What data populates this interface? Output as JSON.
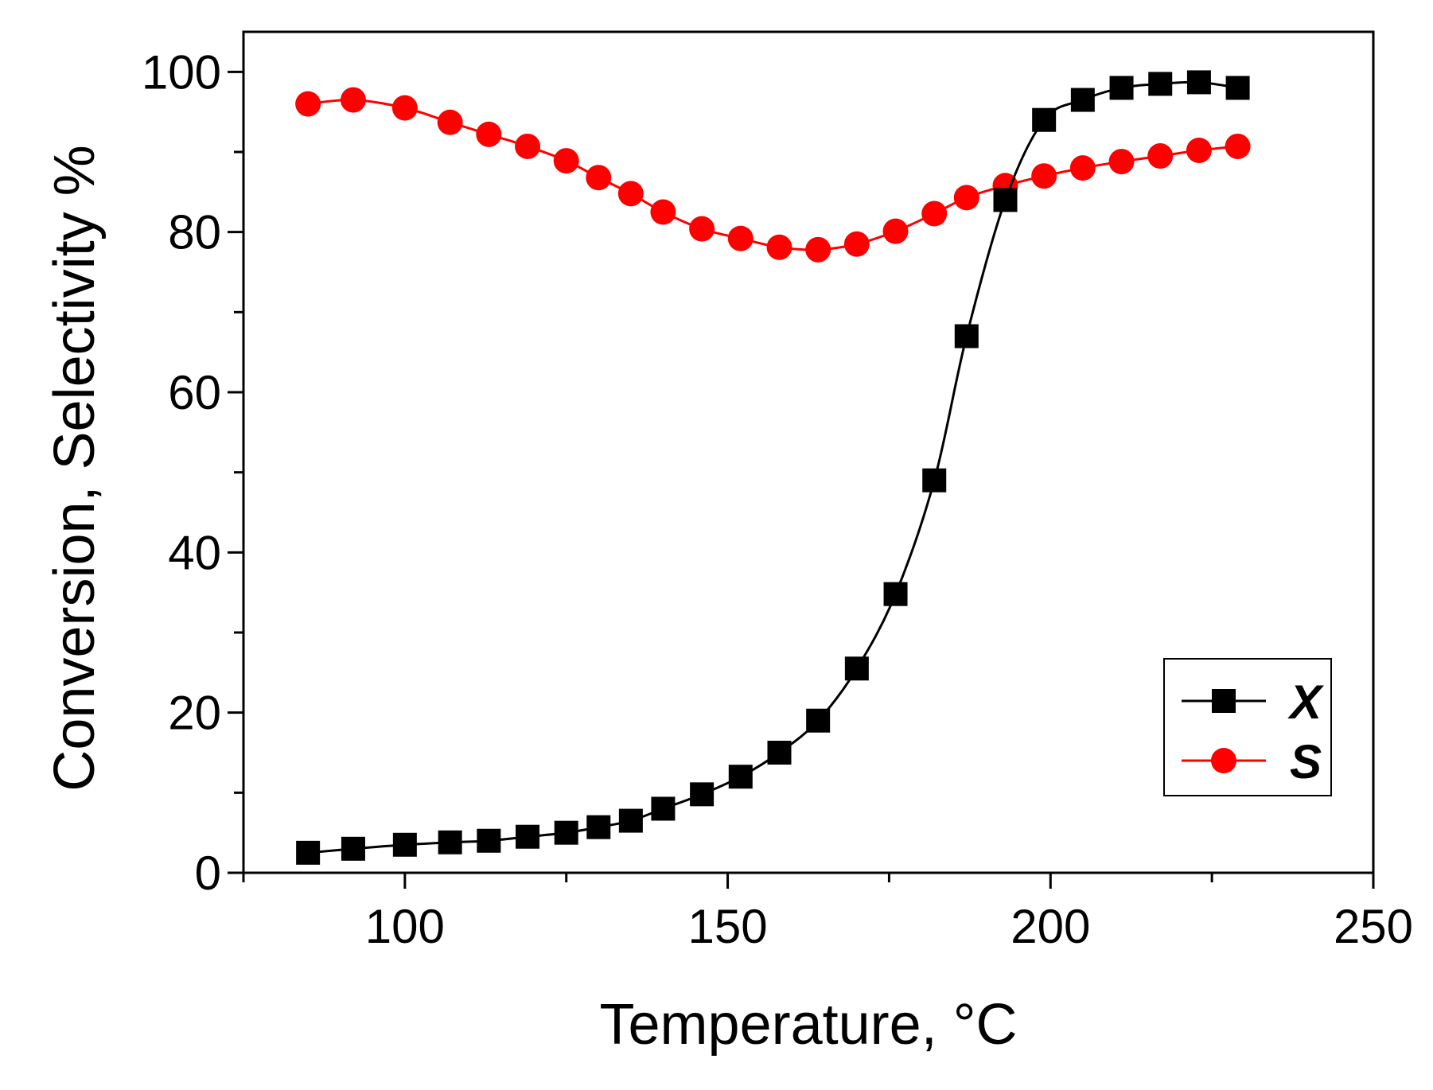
{
  "chart_data": {
    "type": "line",
    "title": "",
    "xlabel": "Temperature, °C",
    "ylabel": "Conversion, Selectivity %",
    "xlim": [
      75,
      250
    ],
    "ylim": [
      0,
      105
    ],
    "xticks": [
      100,
      150,
      200,
      250
    ],
    "xtick_labels": [
      "100",
      "150",
      "200",
      "250"
    ],
    "yticks": [
      0,
      20,
      40,
      60,
      80,
      100
    ],
    "ytick_labels": [
      "0",
      "20",
      "40",
      "60",
      "80",
      "100"
    ],
    "grid": false,
    "legend_position": "lower-right",
    "series": [
      {
        "name": "X",
        "color": "#000000",
        "marker": "square",
        "x": [
          85,
          92,
          100,
          107,
          113,
          119,
          125,
          130,
          135,
          140,
          146,
          152,
          158,
          164,
          170,
          176,
          182,
          187,
          193,
          199,
          205,
          211,
          217,
          223,
          229
        ],
        "values": [
          2.5,
          3.0,
          3.5,
          3.8,
          4.0,
          4.5,
          5.0,
          5.7,
          6.5,
          8.0,
          9.8,
          12.0,
          15.0,
          19.0,
          25.5,
          34.8,
          49.0,
          67.0,
          84.0,
          94.0,
          96.5,
          98.0,
          98.5,
          98.7,
          98.0
        ]
      },
      {
        "name": "S",
        "color": "#ff0000",
        "marker": "circle",
        "x": [
          85,
          92,
          100,
          107,
          113,
          119,
          125,
          130,
          135,
          140,
          146,
          152,
          158,
          164,
          170,
          176,
          182,
          187,
          193,
          199,
          205,
          211,
          217,
          223,
          229
        ],
        "values": [
          96.0,
          96.5,
          95.5,
          93.7,
          92.2,
          90.7,
          88.9,
          86.8,
          84.8,
          82.5,
          80.4,
          79.2,
          78.1,
          77.8,
          78.5,
          80.1,
          82.3,
          84.3,
          85.8,
          87.0,
          88.0,
          88.8,
          89.5,
          90.2,
          90.7
        ]
      }
    ]
  }
}
